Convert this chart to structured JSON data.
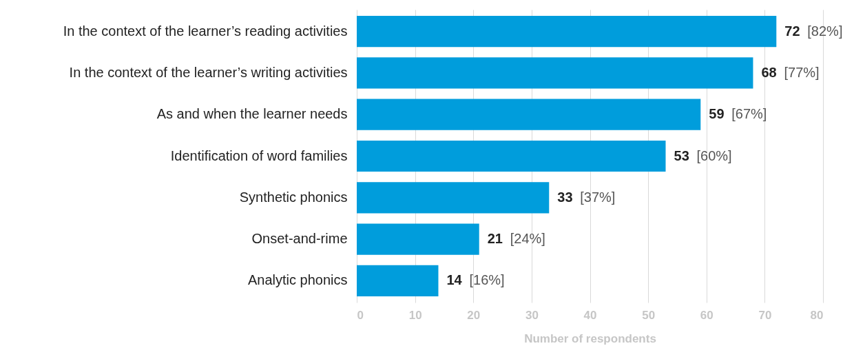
{
  "chart_data": {
    "type": "bar",
    "orientation": "horizontal",
    "xlabel": "Number of respondents",
    "categories": [
      "In the context of the learner’s reading activities",
      "In the context of the learner’s writing activities",
      "As and when the learner needs",
      "Identification of word families",
      "Synthetic phonics",
      "Onset-and-rime",
      "Analytic phonics"
    ],
    "values": [
      72,
      68,
      59,
      53,
      33,
      21,
      14
    ],
    "value_labels": [
      "72 [82%]",
      "68 [77%]",
      "59 [67%]",
      "53 [60%]",
      "33 [37%]",
      "21 [24%]",
      "14 [16%]"
    ],
    "color": "#009ddc",
    "xlim": [
      0,
      80
    ],
    "xticks": [
      0,
      10,
      20,
      30,
      40,
      50,
      60,
      70,
      80
    ],
    "grid": "x"
  }
}
